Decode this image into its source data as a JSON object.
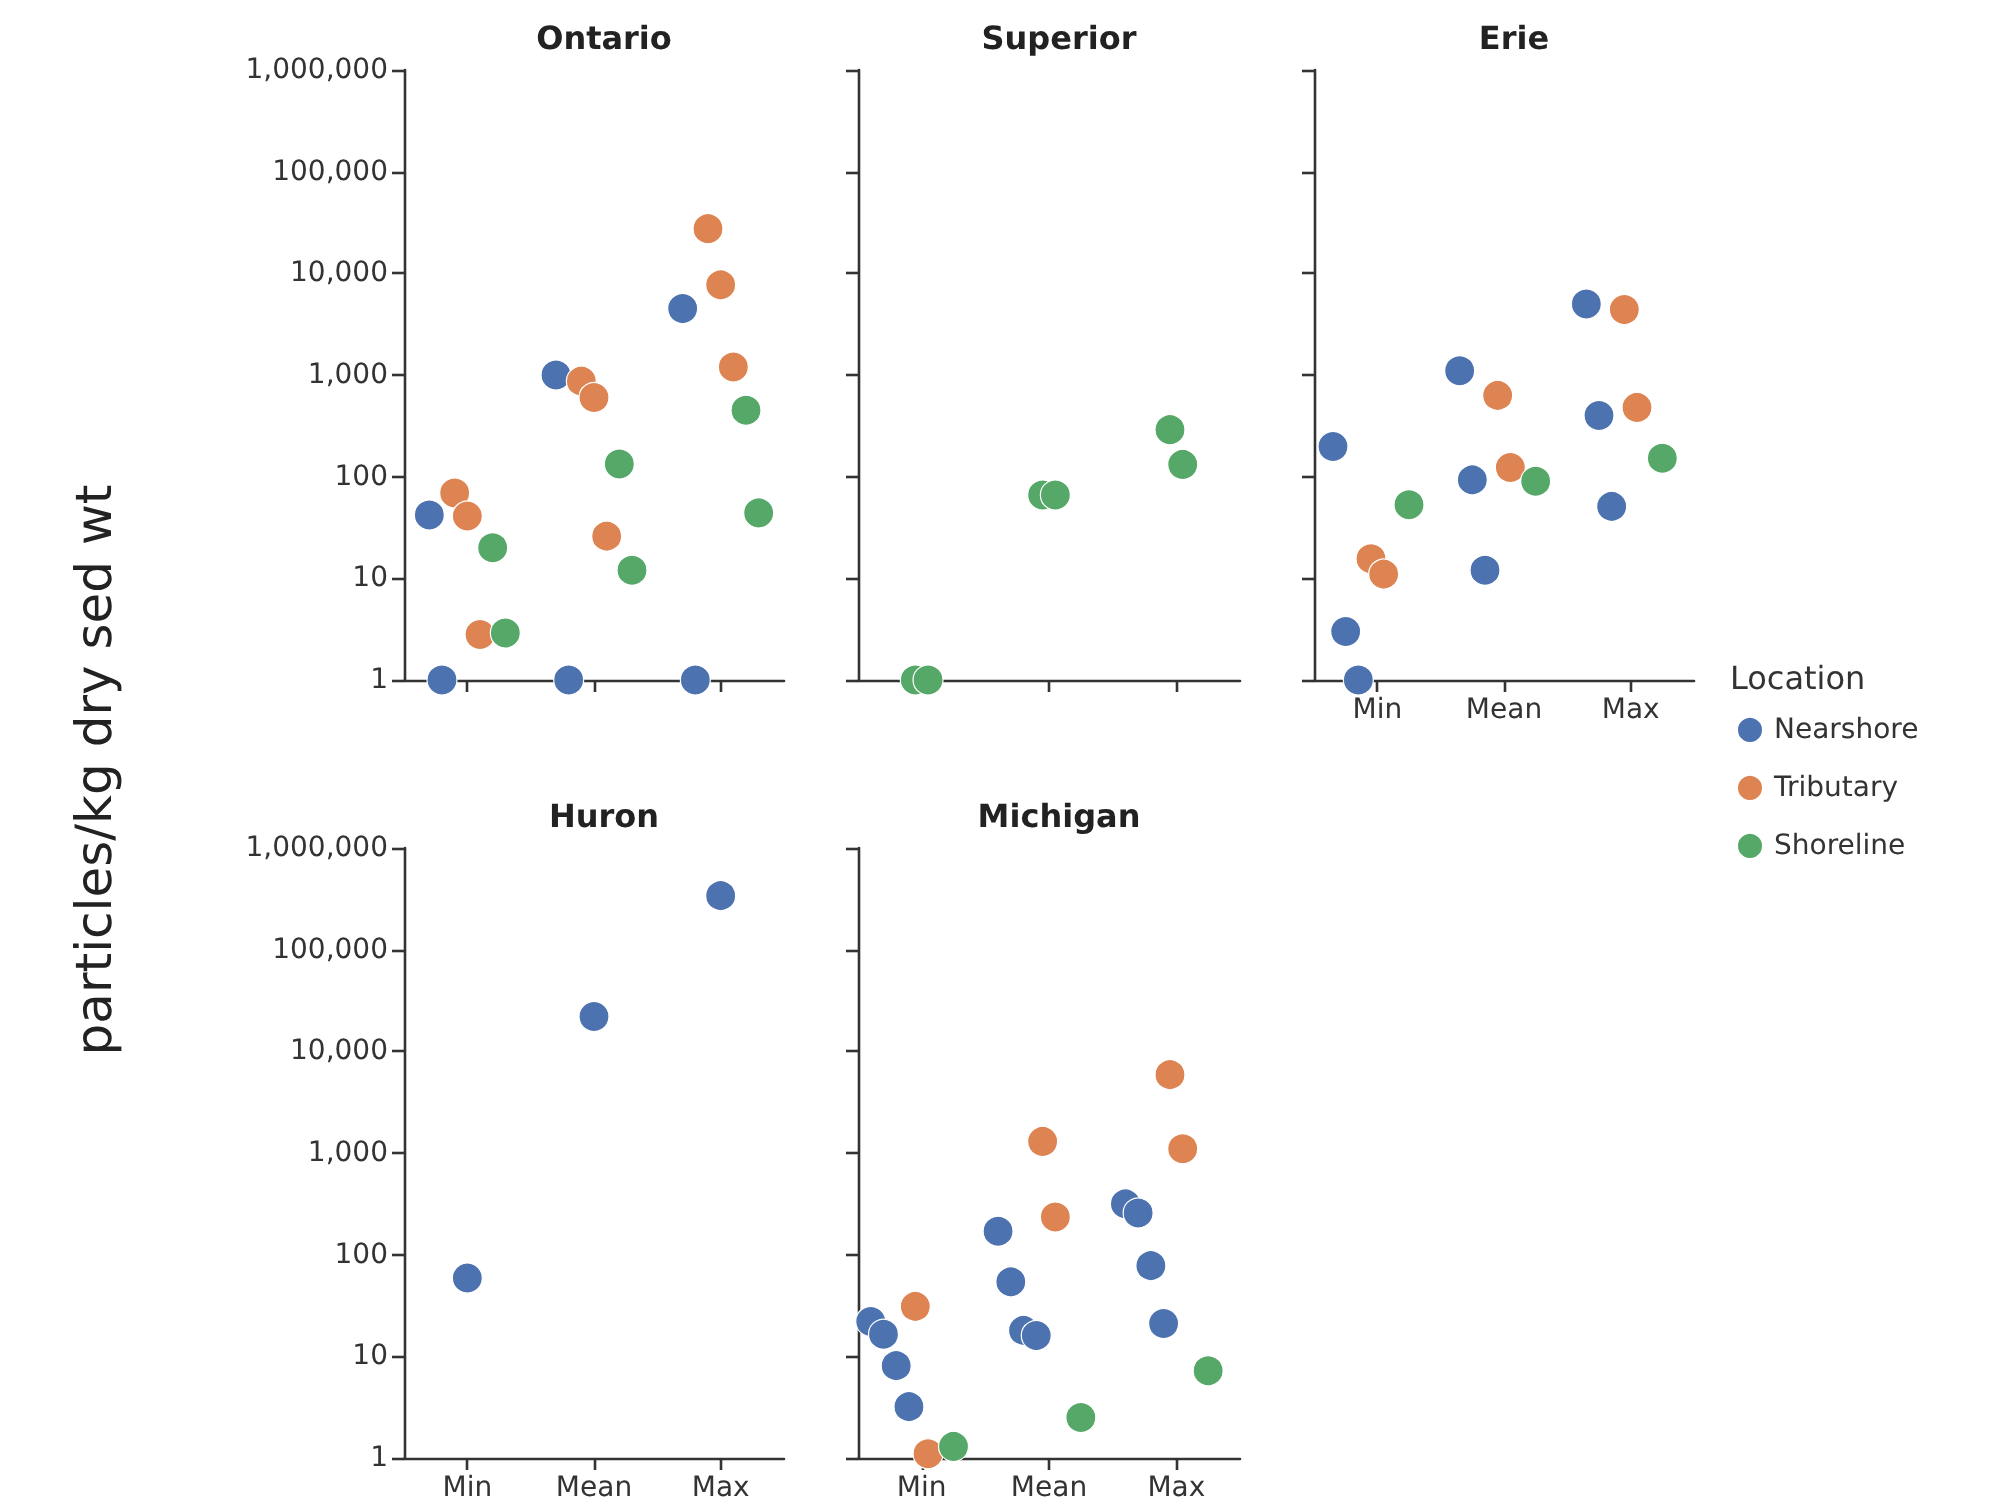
{
  "chart_data": [
    {
      "type": "scatter",
      "title": "Ontario",
      "ylabel": "particles/kg dry sed wt",
      "log": "y",
      "marker": "circle",
      "tick_labels": "y",
      "categories": [
        "Min",
        "Mean",
        "Max"
      ],
      "ylim": [
        1,
        1000000
      ],
      "yticks": [
        1,
        10,
        100,
        {
          "value": 1000,
          "label": "1,000"
        },
        {
          "value": 10000,
          "label": "10,000"
        },
        {
          "value": 100000,
          "label": "100,000"
        },
        {
          "value": 1000000,
          "label": "1,000,000"
        }
      ],
      "series": [
        {
          "color": "#4c72b0",
          "x": [
            "Min",
            "Min",
            "Mean",
            "Mean",
            "Max",
            "Max"
          ],
          "values": [
            42,
            1,
            1000,
            1,
            4500,
            1
          ]
        },
        {
          "color": "#dd8452",
          "x": [
            "Min",
            "Min",
            "Min",
            "Mean",
            "Mean",
            "Mean",
            "Max",
            "Max",
            "Max"
          ],
          "values": [
            69,
            41,
            2.8,
            870,
            600,
            26,
            27500,
            7700,
            1200
          ]
        },
        {
          "color": "#55a868",
          "x": [
            "Min",
            "Min",
            "Mean",
            "Mean",
            "Max",
            "Max"
          ],
          "values": [
            20,
            2.9,
            133,
            12,
            450,
            44
          ]
        }
      ]
    },
    {
      "type": "scatter",
      "title": "Superior",
      "log": "y",
      "marker": "circle",
      "tick_labels": false,
      "categories": [
        "Min",
        "Mean",
        "Max"
      ],
      "ylim": [
        1,
        1000000
      ],
      "yticks": [
        1,
        10,
        100,
        1000,
        10000,
        100000,
        1000000
      ],
      "series": [
        {
          "color": "#55a868",
          "x": [
            "Min",
            "Min",
            "Mean",
            "Mean",
            "Max",
            "Max"
          ],
          "values": [
            1,
            1,
            66,
            66,
            290,
            132
          ]
        }
      ]
    },
    {
      "type": "scatter",
      "title": "Erie",
      "log": "y",
      "marker": "circle",
      "tick_labels": "x",
      "legend": "right",
      "legend_title": "Location",
      "categories": [
        "Min",
        "Mean",
        "Max"
      ],
      "ylim": [
        1,
        1000000
      ],
      "yticks": [
        1,
        10,
        100,
        1000,
        10000,
        100000,
        1000000
      ],
      "series": [
        {
          "name": "Nearshore",
          "color": "#4c72b0",
          "x": [
            "Min",
            "Min",
            "Min",
            "Mean",
            "Mean",
            "Mean",
            "Max",
            "Max",
            "Max"
          ],
          "values": [
            198,
            3,
            1,
            1100,
            93,
            12,
            5000,
            400,
            51
          ]
        },
        {
          "name": "Tributary",
          "color": "#dd8452",
          "x": [
            "Min",
            "Min",
            "Mean",
            "Mean",
            "Max",
            "Max"
          ],
          "values": [
            15.6,
            11,
            630,
            123,
            4400,
            480
          ]
        },
        {
          "name": "Shoreline",
          "color": "#55a868",
          "x": [
            "Min",
            "Mean",
            "Max"
          ],
          "values": [
            53,
            90,
            152
          ]
        }
      ]
    },
    {
      "type": "scatter",
      "title": "Huron",
      "log": "y",
      "marker": "circle",
      "categories": [
        "Min",
        "Mean",
        "Max"
      ],
      "ylim": [
        1,
        1000000
      ],
      "yticks": [
        1,
        10,
        100,
        {
          "value": 1000,
          "label": "1,000"
        },
        {
          "value": 10000,
          "label": "10,000"
        },
        {
          "value": 100000,
          "label": "100,000"
        },
        {
          "value": 1000000,
          "label": "1,000,000"
        }
      ],
      "series": [
        {
          "color": "#4c72b0",
          "x": [
            "Min",
            "Mean",
            "Max"
          ],
          "values": [
            59,
            22000,
            340000
          ]
        }
      ]
    },
    {
      "type": "scatter",
      "title": "Michigan",
      "log": "y",
      "marker": "circle",
      "tick_labels": "x",
      "categories": [
        "Min",
        "Mean",
        "Max"
      ],
      "ylim": [
        1,
        1000000
      ],
      "yticks": [
        1,
        10,
        100,
        1000,
        10000,
        100000,
        1000000
      ],
      "series": [
        {
          "color": "#4c72b0",
          "x": [
            "Min",
            "Min",
            "Min",
            "Min",
            "Mean",
            "Mean",
            "Mean",
            "Mean",
            "Max",
            "Max",
            "Max",
            "Max"
          ],
          "values": [
            22,
            16.5,
            8.1,
            3.2,
            170,
            54,
            18,
            16,
            316,
            257,
            78,
            21
          ]
        },
        {
          "color": "#dd8452",
          "x": [
            "Min",
            "Min",
            "Mean",
            "Mean",
            "Max",
            "Max"
          ],
          "values": [
            31,
            1.1,
            1300,
            235,
            5900,
            1100
          ]
        },
        {
          "color": "#55a868",
          "x": [
            "Min",
            "Mean",
            "Max"
          ],
          "values": [
            1.3,
            2.5,
            7.2
          ]
        }
      ]
    }
  ]
}
